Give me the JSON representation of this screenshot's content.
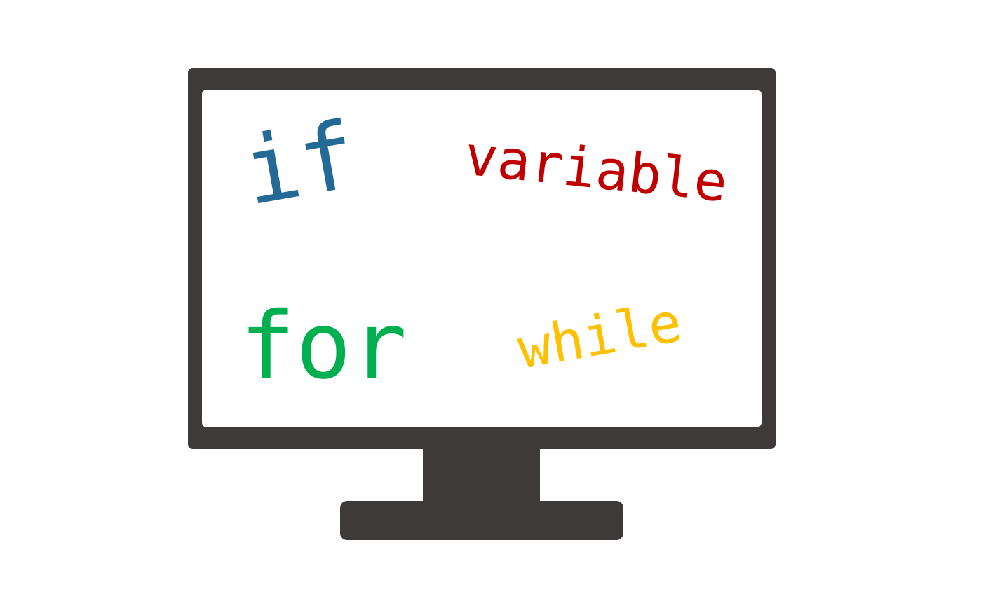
{
  "illustration": {
    "frame_color": "#3e3a39",
    "screen_color": "#ffffff",
    "words": [
      {
        "text": "if",
        "color": "#236a96"
      },
      {
        "text": "variable",
        "color": "#c00000"
      },
      {
        "text": "for",
        "color": "#00b050"
      },
      {
        "text": "while",
        "color": "#ffc000"
      }
    ]
  }
}
